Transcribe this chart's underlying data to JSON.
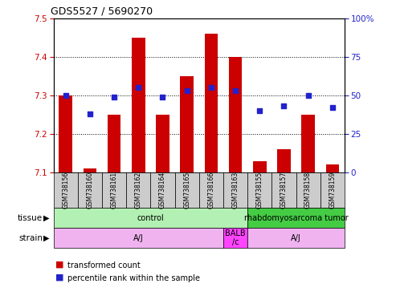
{
  "title": "GDS5527 / 5690270",
  "samples": [
    "GSM738156",
    "GSM738160",
    "GSM738161",
    "GSM738162",
    "GSM738164",
    "GSM738165",
    "GSM738166",
    "GSM738163",
    "GSM738155",
    "GSM738157",
    "GSM738158",
    "GSM738159"
  ],
  "transformed_count": [
    7.3,
    7.11,
    7.25,
    7.45,
    7.25,
    7.35,
    7.46,
    7.4,
    7.13,
    7.16,
    7.25,
    7.12
  ],
  "percentile_rank": [
    50,
    38,
    49,
    55,
    49,
    53,
    55,
    53,
    40,
    43,
    50,
    42
  ],
  "ylim_left": [
    7.1,
    7.5
  ],
  "ylim_right": [
    0,
    100
  ],
  "yticks_left": [
    7.1,
    7.2,
    7.3,
    7.4,
    7.5
  ],
  "yticks_right": [
    0,
    25,
    50,
    75,
    100
  ],
  "bar_color": "#cc0000",
  "dot_color": "#2222cc",
  "bar_bottom": 7.1,
  "tissue_groups": [
    {
      "label": "control",
      "start": 0,
      "end": 8,
      "color": "#b3f0b3"
    },
    {
      "label": "rhabdomyosarcoma tumor",
      "start": 8,
      "end": 12,
      "color": "#44cc44"
    }
  ],
  "strain_groups": [
    {
      "label": "A/J",
      "start": 0,
      "end": 7,
      "color": "#f0b3f0"
    },
    {
      "label": "BALB\n/c",
      "start": 7,
      "end": 8,
      "color": "#ff44ff"
    },
    {
      "label": "A/J",
      "start": 8,
      "end": 12,
      "color": "#f0b3f0"
    }
  ],
  "background_color": "#ffffff",
  "axis_label_color_left": "#cc0000",
  "axis_label_color_right": "#2222cc",
  "xlabel_bg_color": "#cccccc"
}
